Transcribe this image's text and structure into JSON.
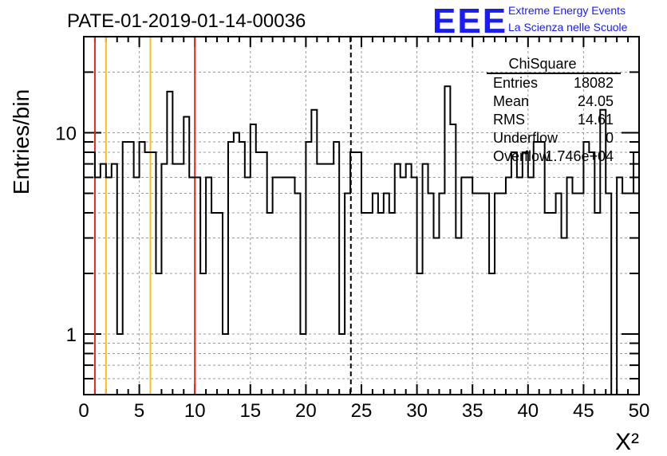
{
  "header": {
    "title": "PATE-01-2019-01-14-00036",
    "logo_mark": "EEE",
    "logo_line1": "Extreme Energy Events",
    "logo_line2": "La Scienza nelle Scuole"
  },
  "stats": {
    "title": "ChiSquare",
    "rows": [
      {
        "label": "Entries",
        "value": "18082"
      },
      {
        "label": "Mean",
        "value": "24.05"
      },
      {
        "label": "RMS",
        "value": "14.61"
      },
      {
        "label": "Underflow",
        "value": "0"
      },
      {
        "label": "Overflow",
        "value": "1.746e+04"
      }
    ]
  },
  "chart_data": {
    "type": "histogram",
    "title": "PATE-01-2019-01-14-00036",
    "xlabel": "X²",
    "ylabel": "Entries/bin",
    "xlim": [
      0,
      50
    ],
    "ylim": [
      0.5,
      30
    ],
    "yscale": "log",
    "grid": true,
    "x_ticks": [
      0,
      5,
      10,
      15,
      20,
      25,
      30,
      35,
      40,
      45,
      50
    ],
    "x_tick_labels": [
      "0",
      "5",
      "10",
      "15",
      "20",
      "25",
      "30",
      "35",
      "40",
      "45",
      "50"
    ],
    "y_tick_labels": [
      {
        "value": 1,
        "label": "1"
      },
      {
        "value": 10,
        "label": "10"
      }
    ],
    "bin_width": 0.5,
    "bin_start": 0,
    "counts": [
      8,
      8,
      6,
      7,
      6,
      7,
      1,
      9,
      9,
      6,
      9,
      8,
      8,
      2,
      7,
      16,
      7,
      7,
      12,
      6,
      6,
      2,
      6,
      4,
      4,
      1,
      9,
      10,
      9,
      6,
      11,
      8,
      8,
      4,
      6,
      6,
      6,
      6,
      5,
      1,
      9,
      13,
      7,
      7,
      7,
      9,
      1,
      5,
      8,
      8,
      4,
      4,
      5,
      4,
      5,
      4,
      7,
      6,
      7,
      6,
      2,
      7,
      5,
      3,
      5,
      17,
      11,
      3,
      6,
      6,
      5,
      5,
      5,
      2,
      5,
      5,
      6,
      8,
      6,
      8,
      6,
      9,
      9,
      4,
      4,
      5,
      3,
      6,
      5,
      5,
      9,
      8,
      4,
      13,
      5,
      0,
      6,
      5,
      5,
      8
    ],
    "vertical_lines": [
      {
        "x": 1,
        "color": "#e8261c",
        "style": "solid"
      },
      {
        "x": 2,
        "color": "#f2c31b",
        "style": "solid"
      },
      {
        "x": 6,
        "color": "#f2c31b",
        "style": "solid"
      },
      {
        "x": 10,
        "color": "#e8261c",
        "style": "solid"
      },
      {
        "x": 24.05,
        "color": "#000000",
        "style": "dashed"
      }
    ]
  }
}
